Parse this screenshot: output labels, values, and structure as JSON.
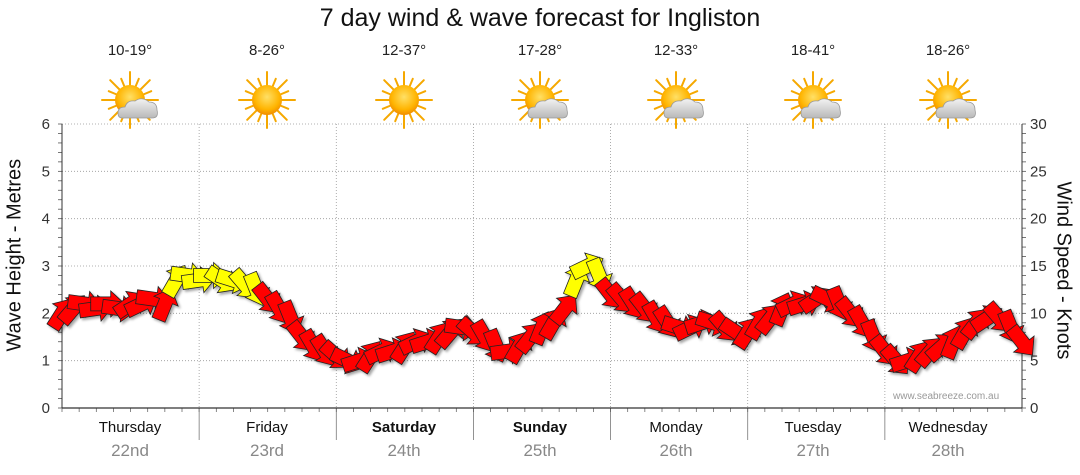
{
  "title": "7 day wind & wave forecast for Ingliston",
  "days": [
    {
      "name": "Thursday",
      "date": "22nd",
      "temp": "10-19°",
      "icon": "sun-cloud-icon",
      "bold": false
    },
    {
      "name": "Friday",
      "date": "23rd",
      "temp": "8-26°",
      "icon": "sun-icon",
      "bold": false
    },
    {
      "name": "Saturday",
      "date": "24th",
      "temp": "12-37°",
      "icon": "sun-icon",
      "bold": true
    },
    {
      "name": "Sunday",
      "date": "25th",
      "temp": "17-28°",
      "icon": "sun-cloud-icon",
      "bold": true
    },
    {
      "name": "Monday",
      "date": "26th",
      "temp": "12-33°",
      "icon": "sun-cloud-icon",
      "bold": false
    },
    {
      "name": "Tuesday",
      "date": "27th",
      "temp": "18-41°",
      "icon": "sun-cloud-icon",
      "bold": false
    },
    {
      "name": "Wednesday",
      "date": "28th",
      "temp": "18-26°",
      "icon": "sun-cloud-icon",
      "bold": false
    }
  ],
  "watermark": "www.seabreeze.com.au",
  "colors": {
    "strong": "#ff0000",
    "light": "#ffff00",
    "outline": "#222222",
    "grid": "#999999"
  },
  "chart_data": {
    "type": "line",
    "title": "7 day wind & wave forecast for Ingliston",
    "ylabel": "Wave Height - Metres",
    "y2label": "Wind Speed - Knots",
    "ylim": [
      0,
      6
    ],
    "y2lim": [
      0,
      30
    ],
    "yticks": [
      "0",
      "1",
      "2",
      "3",
      "4",
      "5",
      "6"
    ],
    "y2ticks": [
      "0",
      "5",
      "10",
      "15",
      "20",
      "25",
      "30"
    ],
    "x_unit": "hours from Thursday 00:00",
    "xlim": [
      0,
      168
    ],
    "series": [
      {
        "name": "Wind Speed (knots) with direction arrows",
        "points": [
          [
            0,
            10
          ],
          [
            2,
            10.5
          ],
          [
            4,
            11
          ],
          [
            6,
            10.5
          ],
          [
            8,
            11
          ],
          [
            10,
            10.5
          ],
          [
            12,
            11
          ],
          [
            14,
            11
          ],
          [
            16,
            11.5
          ],
          [
            18,
            11
          ],
          [
            20,
            13.5
          ],
          [
            22,
            14
          ],
          [
            24,
            13.5
          ],
          [
            26,
            14
          ],
          [
            28,
            13.5
          ],
          [
            30,
            13.5
          ],
          [
            32,
            13
          ],
          [
            34,
            12.5
          ],
          [
            36,
            11.5
          ],
          [
            38,
            10.5
          ],
          [
            40,
            9.5
          ],
          [
            42,
            7.5
          ],
          [
            44,
            6.5
          ],
          [
            46,
            6
          ],
          [
            48,
            5.5
          ],
          [
            50,
            5
          ],
          [
            52,
            5
          ],
          [
            54,
            5.5
          ],
          [
            56,
            6
          ],
          [
            58,
            6
          ],
          [
            60,
            6.5
          ],
          [
            62,
            7
          ],
          [
            64,
            7
          ],
          [
            66,
            7.5
          ],
          [
            68,
            8
          ],
          [
            70,
            8.5
          ],
          [
            72,
            8
          ],
          [
            74,
            7.5
          ],
          [
            76,
            6.5
          ],
          [
            78,
            6
          ],
          [
            80,
            6.5
          ],
          [
            82,
            7.5
          ],
          [
            84,
            8.5
          ],
          [
            86,
            9
          ],
          [
            88,
            10.5
          ],
          [
            90,
            13.5
          ],
          [
            92,
            15
          ],
          [
            94,
            14
          ],
          [
            96,
            12
          ],
          [
            98,
            11.5
          ],
          [
            100,
            11
          ],
          [
            102,
            10.5
          ],
          [
            104,
            9.5
          ],
          [
            106,
            9
          ],
          [
            108,
            8.5
          ],
          [
            110,
            8.5
          ],
          [
            112,
            9
          ],
          [
            114,
            9
          ],
          [
            116,
            8.5
          ],
          [
            118,
            8
          ],
          [
            120,
            8
          ],
          [
            122,
            9
          ],
          [
            124,
            9.5
          ],
          [
            126,
            10.5
          ],
          [
            128,
            11
          ],
          [
            130,
            11
          ],
          [
            132,
            11.5
          ],
          [
            134,
            11.5
          ],
          [
            136,
            11
          ],
          [
            138,
            10
          ],
          [
            140,
            9
          ],
          [
            142,
            7.5
          ],
          [
            144,
            6
          ],
          [
            146,
            5
          ],
          [
            148,
            5
          ],
          [
            150,
            5.5
          ],
          [
            152,
            6
          ],
          [
            154,
            6.5
          ],
          [
            156,
            7
          ],
          [
            158,
            8
          ],
          [
            160,
            9
          ],
          [
            162,
            9.5
          ],
          [
            164,
            9.5
          ],
          [
            166,
            8.5
          ],
          [
            168,
            7
          ]
        ]
      }
    ]
  }
}
